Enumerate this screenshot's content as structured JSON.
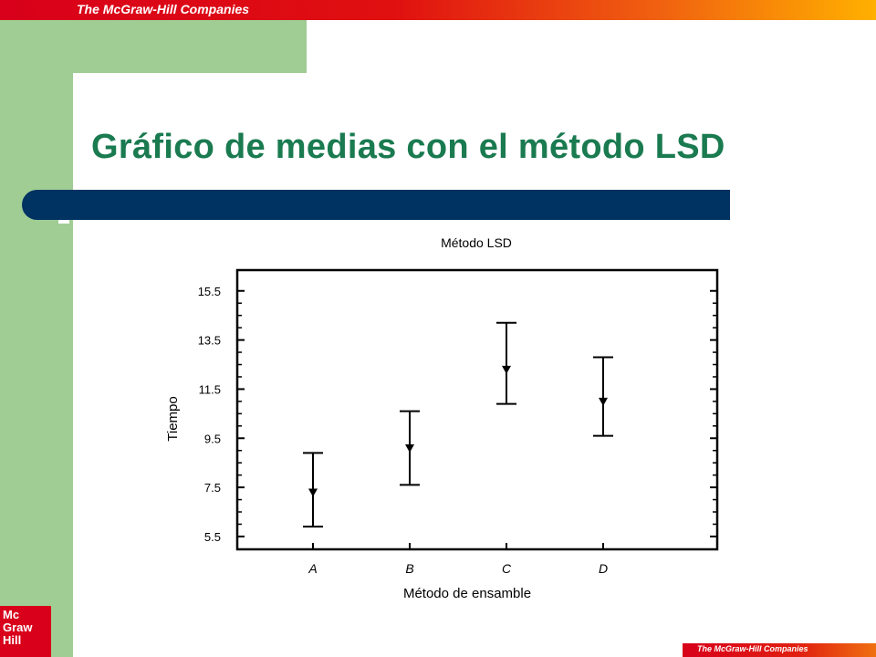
{
  "slide": {
    "banner_text": "The McGraw-Hill Companies",
    "footer_text": "The McGraw-Hill Companies",
    "title": "Gráfico de medias con el método LSD",
    "logo_lines": [
      "Mc",
      "Graw",
      "Hill"
    ],
    "colors": {
      "banner_red": "#d8001a",
      "banner_orange": "#ffb000",
      "side_green": "#9fcd94",
      "title_green": "#1a7a50",
      "title_bar_navy": "#003262"
    }
  },
  "chart_data": {
    "type": "errorbar",
    "title": "Método LSD",
    "xlabel": "Método de ensamble",
    "ylabel": "Tiempo",
    "categories": [
      "A",
      "B",
      "C",
      "D"
    ],
    "means": [
      7.3,
      9.1,
      12.3,
      11.0
    ],
    "lower": [
      5.9,
      7.6,
      10.9,
      9.6
    ],
    "upper": [
      8.9,
      10.6,
      14.2,
      12.8
    ],
    "yticks": [
      5.5,
      7.5,
      9.5,
      11.5,
      13.5,
      15.5
    ],
    "ytick_labels": [
      "5.5",
      "7.5",
      "9.5",
      "11.5",
      "13.5",
      "15.5"
    ],
    "ylim": [
      5.2,
      15.9
    ],
    "grid": false,
    "legend": "none"
  }
}
